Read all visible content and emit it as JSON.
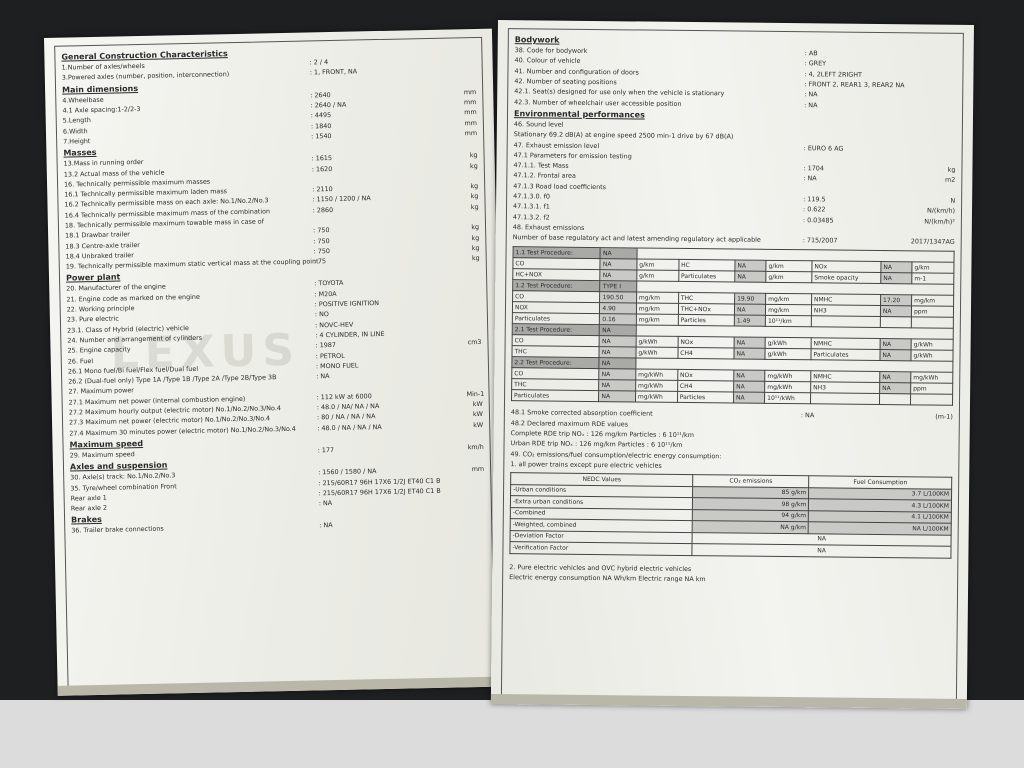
{
  "watermark": "LEXUS",
  "left": {
    "sections": [
      {
        "title": "General Construction Characteristics",
        "rows": [
          {
            "label": "1.Number of axles/wheels",
            "value": ": 2 / 4"
          },
          {
            "label": "3.Powered axles (number, position, interconnection)",
            "value": ": 1, FRONT, NA"
          }
        ]
      },
      {
        "title": "Main dimensions",
        "rows": [
          {
            "label": "4.Wheelbase",
            "value": ": 2640",
            "unit": "mm"
          },
          {
            "label": "4.1 Axle spacing:1-2/2-3",
            "value": ": 2640 / NA",
            "unit": "mm"
          },
          {
            "label": "5.Length",
            "value": ": 4495",
            "unit": "mm"
          },
          {
            "label": "6.Width",
            "value": ": 1840",
            "unit": "mm"
          },
          {
            "label": "7.Height",
            "value": ": 1540",
            "unit": "mm"
          }
        ]
      },
      {
        "title": "Masses",
        "rows": [
          {
            "label": "13.Mass in running order",
            "value": ": 1615",
            "unit": "kg"
          },
          {
            "label": "13.2 Actual mass of the vehicle",
            "value": ": 1620",
            "unit": "kg"
          },
          {
            "label": "16. Technically permissible maximum masses"
          },
          {
            "label": "16.1 Technically permissible maximum laden mass",
            "value": ": 2110",
            "unit": "kg"
          },
          {
            "label": "16.2 Technically permissible mass on each axle: No.1/No.2/No.3",
            "value": ": 1150 / 1200 / NA",
            "unit": "kg"
          },
          {
            "label": "16.4 Technically permissible maximum mass of the combination",
            "value": ": 2860",
            "unit": "kg"
          },
          {
            "label": "18. Technically permissible maximum towable mass in case of"
          },
          {
            "label": "18.1 Drawbar trailer",
            "value": ": 750",
            "unit": "kg"
          },
          {
            "label": "18.3 Centre-axle trailer",
            "value": ": 750",
            "unit": "kg"
          },
          {
            "label": "18.4 Unbraked trailer",
            "value": ": 750",
            "unit": "kg"
          },
          {
            "label": "19. Technically permissible maximum static vertical mass at the coupling point",
            "value": ": 75",
            "unit": "kg"
          }
        ]
      },
      {
        "title": "Power plant",
        "rows": [
          {
            "label": "20. Manufacturer of the engine",
            "value": ": TOYOTA"
          },
          {
            "label": "21. Engine code as marked on the engine",
            "value": ": M20A"
          },
          {
            "label": "22. Working principle",
            "value": ": POSITIVE IGNITION"
          },
          {
            "label": "23. Pure electric",
            "value": ": NO"
          },
          {
            "label": "23.1. Class of Hybrid (electric) vehicle",
            "value": ": NOVC-HEV"
          },
          {
            "label": "24. Number and arrangement of cylinders",
            "value": ": 4 CYLINDER, IN LINE"
          },
          {
            "label": "25. Engine capacity",
            "value": ": 1987",
            "unit": "cm3"
          },
          {
            "label": "26. Fuel",
            "value": ": PETROL"
          },
          {
            "label": "26.1 Mono fuel/Bi fuel/Flex fuel/Dual fuel",
            "value": ": MONO FUEL"
          },
          {
            "label": "26.2 (Dual-fuel only) Type 1A /Type 1B /Type 2A /Type 2B/Type 3B",
            "value": ": NA"
          },
          {
            "label": "27. Maximum power"
          },
          {
            "label": "27.1 Maximum net power (internal combustion engine)",
            "value": ": 112  kW at  6000",
            "unit": "Min-1"
          },
          {
            "label": "27.2 Maximum hourly output (electric motor) No.1/No.2/No.3/No.4",
            "value": ": 48.0 / NA/ NA / NA",
            "unit": "kW"
          },
          {
            "label": "27.3 Maximum net power (electric motor) No.1/No.2/No.3/No.4",
            "value": ": 80 / NA / NA / NA",
            "unit": "kW"
          },
          {
            "label": "27.4 Maximum 30 minutes power (electric motor) No.1/No.2/No.3/No.4",
            "value": ": 48.0 / NA / NA / NA",
            "unit": "kW"
          }
        ]
      },
      {
        "title": "Maximum speed",
        "rows": [
          {
            "label": "29. Maximum speed",
            "value": ": 177",
            "unit": "km/h"
          }
        ]
      },
      {
        "title": "Axles and suspension",
        "rows": [
          {
            "label": "30. Axle(s) track: No.1/No.2/No.3",
            "value": ": 1560 / 1580 / NA",
            "unit": "mm"
          },
          {
            "label": "35. Tyre/wheel combination Front",
            "value": ": 215/60R17 96H 17X6 1/2J ET40 C1 B"
          },
          {
            "label": "Rear axle 1",
            "value": ": 215/60R17 96H 17X6 1/2J ET40 C1 B"
          },
          {
            "label": "Rear axle 2",
            "value": ": NA"
          }
        ]
      },
      {
        "title": "Brakes",
        "rows": [
          {
            "label": "36. Trailer brake connections",
            "value": ": NA"
          }
        ]
      }
    ]
  },
  "right": {
    "sections": [
      {
        "title": "Bodywork",
        "rows": [
          {
            "label": "38. Code for bodywork",
            "value": ": AB"
          },
          {
            "label": "40. Colour of vehicle",
            "value": ": GREY"
          },
          {
            "label": "41. Number and configuration of doors",
            "value": ": 4, 2LEFT 2RIGHT"
          },
          {
            "label": "42. Number of seating positions",
            "value": ": FRONT 2, REAR1 3, REAR2 NA"
          },
          {
            "label": "42.1. Seat(s) designed for use only when the vehicle is stationary",
            "value": ": NA"
          },
          {
            "label": "42.3. Number of wheelchair user accessible position",
            "value": ": NA"
          }
        ]
      },
      {
        "title": "Environmental performances",
        "rows": [
          {
            "label": "46. Sound level"
          },
          {
            "label": "Stationary   69.2   dB(A)     at engine speed    2500    min-1    drive by    67    dB(A)"
          },
          {
            "label": "47. Exhaust emission level",
            "value": ": EURO 6 AG"
          },
          {
            "label": "47.1 Parameters for emission testing"
          },
          {
            "label": "47.1.1. Test Mass",
            "value": ": 1704",
            "unit": "kg"
          },
          {
            "label": "47.1.2. Frontal area",
            "value": ": NA",
            "unit": "m2"
          },
          {
            "label": "47.1.3 Road load coefficients"
          },
          {
            "label": "47.1.3.0. f0",
            "value": ": 119.5",
            "unit": "N"
          },
          {
            "label": "47.1.3.1. f1",
            "value": ": 0.622",
            "unit": "N/(km/h)"
          },
          {
            "label": "47.1.3.2. f2",
            "value": ": 0.03485",
            "unit": "N/(km/h)²"
          },
          {
            "label": "48. Exhaust emissions"
          },
          {
            "label": "Number of base regulatory act and latest amending regulatory act applicable",
            "value": ": 715/2007",
            "unit": "2017/1347AG"
          }
        ]
      }
    ],
    "emission_table": [
      {
        "label": "1.1 Test Procedure:",
        "value": "NA",
        "rows": [
          [
            "CO",
            "NA",
            "g/km",
            "HC",
            "NA",
            "g/km",
            "NOx",
            "NA",
            "g/km"
          ],
          [
            "HC+NOX",
            "NA",
            "g/km",
            "Particulates",
            "NA",
            "g/km",
            "Smoke opacity",
            "NA",
            "m-1"
          ]
        ]
      },
      {
        "label": "1.2 Test Procedure:",
        "value": "TYPE I",
        "rows": [
          [
            "CO",
            "190.50",
            "mg/km",
            "THC",
            "19.90",
            "mg/km",
            "NMHC",
            "17.20",
            "mg/km"
          ],
          [
            "NOX",
            "4.90",
            "mg/km",
            "THC+NOx",
            "NA",
            "mg/km",
            "NH3",
            "NA",
            "ppm"
          ],
          [
            "Particulates",
            "0.16",
            "mg/km",
            "Particles",
            "1.49",
            "10¹¹/km",
            null,
            null,
            null
          ]
        ]
      },
      {
        "label": "2.1 Test Procedure:",
        "value": "NA",
        "rows": [
          [
            "CO",
            "NA",
            "g/kWh",
            "NOx",
            "NA",
            "g/kWh",
            "NMHC",
            "NA",
            "g/kWh"
          ],
          [
            "THC",
            "NA",
            "g/kWh",
            "CH4",
            "NA",
            "g/kWh",
            "Particulates",
            "NA",
            "g/kWh"
          ]
        ]
      },
      {
        "label": "2.2 Test Procedure:",
        "value": "NA",
        "rows": [
          [
            "CO",
            "NA",
            "mg/kWh",
            "NOx",
            "NA",
            "mg/kWh",
            "NMHC",
            "NA",
            "mg/kWh"
          ],
          [
            "THC",
            "NA",
            "mg/kWh",
            "CH4",
            "NA",
            "mg/kWh",
            "NH3",
            "NA",
            "ppm"
          ],
          [
            "Particulates",
            "NA",
            "mg/kWh",
            "Particles",
            "NA",
            "10¹¹/kWh",
            null,
            null,
            null
          ]
        ]
      }
    ],
    "after_rows": [
      {
        "label": "48.1 Smoke corrected absorption coefficient",
        "value": ": NA",
        "unit": "(m-1)"
      },
      {
        "label": "48.2 Declared maximum RDE values"
      },
      {
        "label": "      Complete RDE trip                                   NOₓ :   126   mg/km          Particles :   6   10¹¹/km"
      },
      {
        "label": "      Urban RDE trip                                        NOₓ :   126   mg/km          Particles :   6   10¹¹/km"
      },
      {
        "label": "49. CO₂ emissions/fuel consumption/electric energy consumption:"
      },
      {
        "label": "   1. all power trains except pure electric vehicles"
      }
    ],
    "nedc": {
      "header": [
        "NEDC Values",
        "CO₂ emissions",
        "Fuel Consumption"
      ],
      "rows": [
        [
          "-Urban conditions",
          "85 g/km",
          "3.7 L/100KM"
        ],
        [
          "-Extra urban conditions",
          "98 g/km",
          "4.3 L/100KM"
        ],
        [
          "-Combined",
          "94 g/km",
          "4.1 L/100KM"
        ],
        [
          "-Weighted, combined",
          "NA g/km",
          "NA L/100KM"
        ],
        [
          "-Deviation Factor",
          "NA"
        ],
        [
          "-Verification Factor",
          "NA"
        ]
      ]
    },
    "footer": [
      {
        "label": "   2. Pure electric vehicles and OVC hybrid electric vehicles"
      },
      {
        "label": "   Electric energy consumption     NA     Wh/km      Electric range     NA     km"
      }
    ]
  }
}
